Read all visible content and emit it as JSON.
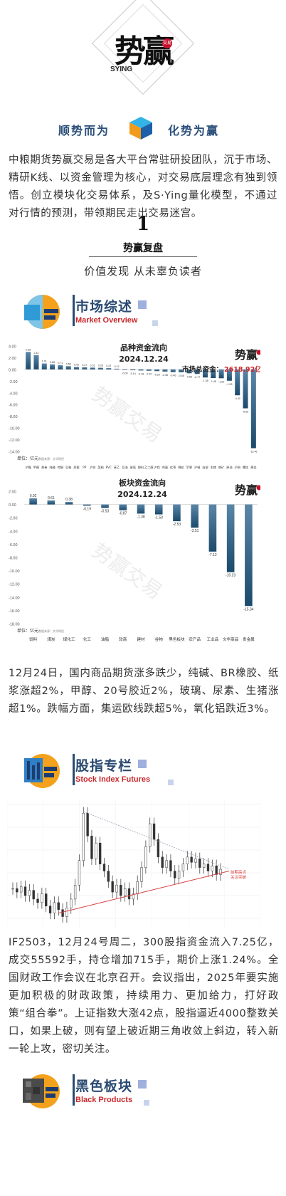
{
  "header": {
    "logo_text": "势赢",
    "logo_sub": "SYING",
    "logo_seal": "交易",
    "slogan_left": "顺势而为",
    "slogan_right": "化势为赢"
  },
  "intro": "中粮期货势赢交易是各大平台常驻研投团队，沉于市场、精研K线、以资金管理为核心，对交易底层理念有独到领悟。创立模块化交易体系，及S·Ying量化模型，不通过对行情的预测，带领期民走出交易迷宫。",
  "section": {
    "number": "1",
    "title": "势赢复盘",
    "subtitle": "价值发现 从未辜负读者"
  },
  "columns": {
    "market": {
      "title": "市场综述",
      "en": "Market Overview"
    },
    "stock": {
      "title": "股指专栏",
      "en": "Stock Index Futures"
    },
    "black": {
      "title": "黑色板块",
      "en": "Black Products"
    }
  },
  "watermark": "势赢交易",
  "chart_data": [
    {
      "type": "bar",
      "title": "品种资金流向",
      "subtitle": "2024.12.24",
      "annotation": "市场总资金：",
      "annotation_value": "2618.92亿",
      "ylabel": "单位：亿元",
      "source": "数据来源：文华财经",
      "ylim": [
        -14,
        4
      ],
      "yticks": [
        "4.00",
        "2.00",
        "0.00",
        "-2.00",
        "-4.00",
        "-6.00",
        "-8.00",
        "-10.00",
        "-12.00",
        "-14.00"
      ],
      "values": [
        2.98,
        2.42,
        1.01,
        0.86,
        0.71,
        0.56,
        0.42,
        0.37,
        0.31,
        0.28,
        0.22,
        0.12,
        -0.09,
        -0.14,
        -0.18,
        -0.22,
        -0.29,
        -0.36,
        -0.46,
        -0.48,
        -0.66,
        -0.77,
        -1.38,
        -1.48,
        -1.51,
        -1.93,
        -4.42,
        -6.65,
        -13.46
      ],
      "labels": [
        "2.98",
        "2.42",
        "1.01",
        "0.86",
        "0.71",
        "0.56",
        "0.42",
        "0.37",
        "0.31",
        "0.28",
        "0.22",
        "0.12",
        "-0.09",
        "-0.14",
        "-0.18",
        "-0.22",
        "-0.29",
        "-0.36",
        "-0.46",
        "-0.48",
        "-0.66",
        "-0.77",
        "-1.38",
        "-1.48",
        "-1.51",
        "-1.93",
        "-4.42",
        "-6.65",
        "-13.46"
      ],
      "categories": [
        "沪镍",
        "甲醇",
        "热卷",
        "纯碱",
        "棕榈",
        "豆粕",
        "尿素",
        "PP",
        "沪锌",
        "菜粕",
        "PVC",
        "苯乙",
        "豆油",
        "玻璃",
        "塑料",
        "乙二醇",
        "沪铝",
        "鸡蛋",
        "红枣",
        "棉花",
        "苹果",
        "沪锡",
        "白银",
        "生猪",
        "铁矿",
        "原油",
        "沪铜",
        "螺纹",
        "黄金"
      ]
    },
    {
      "type": "bar",
      "title": "板块资金流向",
      "subtitle": "2024.12.24",
      "ylabel": "单位：亿元",
      "source": "数据来源：文华财经",
      "ylim": [
        -18,
        2
      ],
      "yticks": [
        "2.00",
        "0.00",
        "-2.00",
        "-4.00",
        "-6.00",
        "-8.00",
        "-10.00",
        "-12.00",
        "-14.00",
        "-16.00",
        "-18.00"
      ],
      "values": [
        0.92,
        0.61,
        0.38,
        -0.19,
        -0.53,
        -0.87,
        -1.38,
        -1.5,
        -2.53,
        -3.51,
        -7.12,
        -10.23,
        -15.34
      ],
      "labels": [
        "0.92",
        "0.61",
        "0.38",
        "-0.19",
        "-0.53",
        "-0.87",
        "-1.38",
        "-1.50",
        "-2.53",
        "-3.51",
        "-7.12",
        "-10.23",
        "-15.34"
      ],
      "categories": [
        "饲料",
        "煤炭",
        "煤化工",
        "化工",
        "油脂",
        "软商",
        "建材",
        "谷物",
        "黑色板块",
        "农产品",
        "工业品",
        "文华商品",
        "贵金属"
      ]
    },
    {
      "type": "line",
      "title": "",
      "legend": [
        "前期高点",
        "关注突破"
      ],
      "series": [
        {
          "name": "IF",
          "values": [
            3.2,
            3.0,
            3.3,
            2.8,
            3.1,
            2.6,
            2.4,
            2.9,
            2.2,
            1.8,
            2.4,
            2.0,
            1.6,
            2.1,
            2.6,
            3.4,
            4.8,
            7.5,
            6.2,
            4.9,
            5.8,
            4.6,
            4.2,
            3.6,
            3.0,
            3.4,
            2.8,
            3.2,
            2.6,
            2.9,
            3.6,
            4.4,
            5.6,
            6.9,
            6.0,
            5.0,
            4.4,
            4.8,
            4.2,
            3.8,
            4.2,
            4.6,
            5.0,
            4.7,
            4.9,
            4.4,
            4.6,
            4.2,
            4.5,
            4.0,
            4.3
          ]
        }
      ]
    }
  ],
  "market_text": "12月24日，国内商品期货涨多跌少，纯碱、BR橡胶、纸浆涨超2%，甲醇、20号胶近2%，玻璃、尿素、生猪涨超1%。跌幅方面，集运欧线跌超5%，氧化铝跌近3%。",
  "stock_text": "IF2503，12月24号周二，300股指资金流入7.25亿，成交55592手，持仓增加715手，期价上涨1.24%。全国财政工作会议在北京召开。会议指出，2025年要实施更加积极的财政政策，持续用力、更加给力，打好政策“组合拳”。上证指数大涨42点，股指逼近4000整数关口，如果上破，则有望上破近期三角收敛上斜边，转入新一轮上攻，密切关注。",
  "colors": {
    "accent": "#2a4a73",
    "red": "#c8282c",
    "bar_top": "#5b86a8",
    "bar_bottom": "#1b4a6b"
  }
}
